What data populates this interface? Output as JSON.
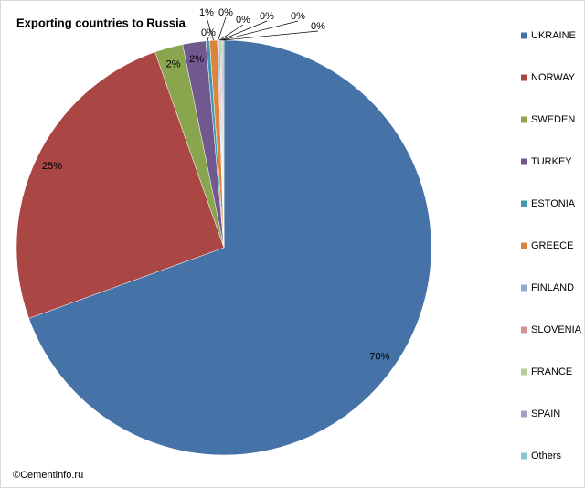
{
  "chart_data": {
    "type": "pie",
    "title": "Exporting countries to Russia",
    "source": "©Cementinfo.ru",
    "categories": [
      "UKRAINE",
      "NORWAY",
      "SWEDEN",
      "TURKEY",
      "ESTONIA",
      "GREECE",
      "FINLAND",
      "SLOVENIA",
      "FRANCE",
      "SPAIN",
      "Others"
    ],
    "values": [
      69.6,
      25.2,
      2.2,
      1.8,
      0.3,
      0.6,
      0.1,
      0.1,
      0.1,
      0.1,
      0.1
    ],
    "value_labels": [
      "70%",
      "25%",
      "2%",
      "2%",
      "0%",
      "1%",
      "0%",
      "0%",
      "0%",
      "0%",
      "0%"
    ],
    "colors": [
      "#4572a7",
      "#aa4643",
      "#89a54e",
      "#71588f",
      "#4198af",
      "#db843d",
      "#93a9cf",
      "#d19392",
      "#b9cd96",
      "#a99bbd",
      "#92c3d5"
    ],
    "legend": "right"
  }
}
